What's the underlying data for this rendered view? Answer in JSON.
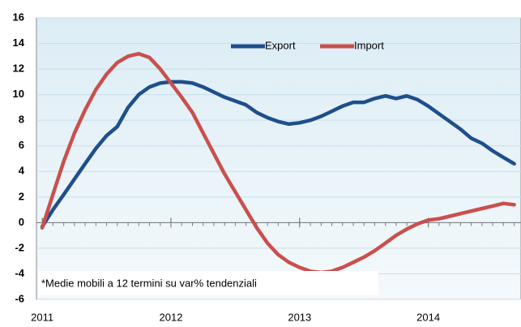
{
  "chart_data": {
    "type": "line",
    "annotation": "*Medie mobili a 12 termini su var% tendenziali",
    "x": [
      2011,
      2011.083,
      2011.167,
      2011.25,
      2011.333,
      2011.417,
      2011.5,
      2011.583,
      2011.667,
      2011.75,
      2011.833,
      2011.917,
      2012,
      2012.083,
      2012.167,
      2012.25,
      2012.333,
      2012.417,
      2012.5,
      2012.583,
      2012.667,
      2012.75,
      2012.833,
      2012.917,
      2013,
      2013.083,
      2013.167,
      2013.25,
      2013.333,
      2013.417,
      2013.5,
      2013.583,
      2013.667,
      2013.75,
      2013.833,
      2013.917,
      2014,
      2014.083,
      2014.167,
      2014.25,
      2014.333,
      2014.417,
      2014.5,
      2014.583,
      2014.667
    ],
    "series": [
      {
        "name": "Export",
        "color": "#1f4e8c",
        "values": [
          -0.3,
          1.0,
          2.2,
          3.4,
          4.6,
          5.8,
          6.8,
          7.5,
          9.0,
          10.0,
          10.6,
          10.9,
          11.0,
          11.0,
          10.9,
          10.6,
          10.2,
          9.8,
          9.5,
          9.2,
          8.6,
          8.2,
          7.9,
          7.7,
          7.8,
          8.0,
          8.3,
          8.7,
          9.1,
          9.4,
          9.4,
          9.7,
          9.9,
          9.7,
          9.9,
          9.6,
          9.1,
          8.5,
          7.9,
          7.3,
          6.6,
          6.2,
          5.6,
          5.1,
          4.6
        ]
      },
      {
        "name": "Import",
        "color": "#c9504d",
        "values": [
          -0.4,
          2.2,
          4.8,
          7.0,
          8.8,
          10.4,
          11.6,
          12.5,
          13.0,
          13.2,
          12.9,
          12.0,
          10.9,
          9.8,
          8.6,
          7.0,
          5.4,
          3.8,
          2.4,
          1.0,
          -0.4,
          -1.6,
          -2.5,
          -3.1,
          -3.5,
          -3.8,
          -3.9,
          -3.8,
          -3.5,
          -3.1,
          -2.7,
          -2.2,
          -1.6,
          -1.0,
          -0.5,
          -0.1,
          0.2,
          0.3,
          0.5,
          0.7,
          0.9,
          1.1,
          1.3,
          1.5,
          1.4
        ]
      }
    ],
    "xlim": [
      2010.955,
      2014.72
    ],
    "xticks": [
      2011,
      2012,
      2013,
      2014
    ],
    "ylim": [
      -6,
      16
    ],
    "yticks": [
      -6,
      -4,
      -2,
      0,
      2,
      4,
      6,
      8,
      10,
      12,
      14,
      16
    ],
    "grid": true,
    "legend": "upper center"
  }
}
